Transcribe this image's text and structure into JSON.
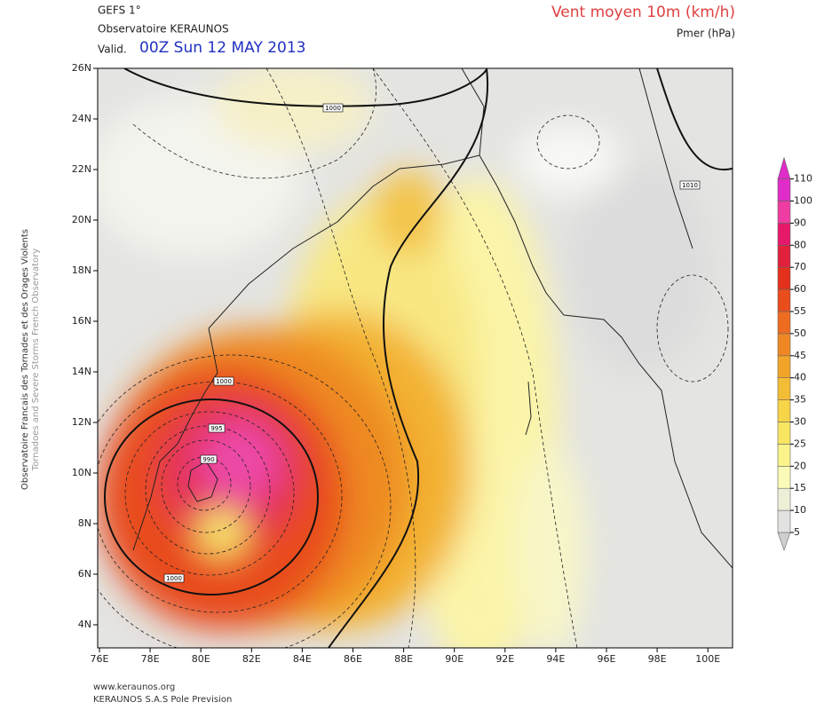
{
  "header": {
    "model": "GEFS 1°",
    "source": "Observatoire KERAUNOS",
    "valid_label": "Valid.",
    "valid_time": "00Z Sun 12 MAY 2013",
    "field": "Vent moyen 10m (km/h)",
    "overlay": "Pmer (hPa)"
  },
  "side_text": [
    "Observatoire Francais des Tornades et des Orages Violents",
    "Tornadoes and Severe Storms French Observatory"
  ],
  "map": {
    "lon_labels": [
      "76E",
      "78E",
      "80E",
      "82E",
      "84E",
      "86E",
      "88E",
      "90E",
      "92E",
      "94E",
      "96E",
      "98E",
      "100E"
    ],
    "lat_labels": [
      "26N",
      "24N",
      "22N",
      "20N",
      "18N",
      "16N",
      "14N",
      "12N",
      "10N",
      "8N",
      "6N",
      "4N"
    ],
    "contour_labels": [
      "1000",
      "1010",
      "1000",
      "995",
      "990",
      "1000"
    ]
  },
  "colorbar": {
    "levels": [
      5,
      10,
      15,
      20,
      25,
      30,
      35,
      40,
      45,
      50,
      55,
      60,
      70,
      80,
      90,
      100,
      110
    ],
    "colors": [
      "#cfcfcf",
      "#e2e2e0",
      "#efefd8",
      "#fbfbb8",
      "#f9f38a",
      "#f8e662",
      "#f7d448",
      "#f4bd36",
      "#f2a428",
      "#ef8824",
      "#ed6c20",
      "#ea4c1c",
      "#e4301c",
      "#e0203c",
      "#e6186a",
      "#ee3ca2",
      "#e02cc8"
    ]
  },
  "footer": {
    "url": "www.keraunos.org",
    "company": "KERAUNOS S.A.S Pole Prevision"
  }
}
